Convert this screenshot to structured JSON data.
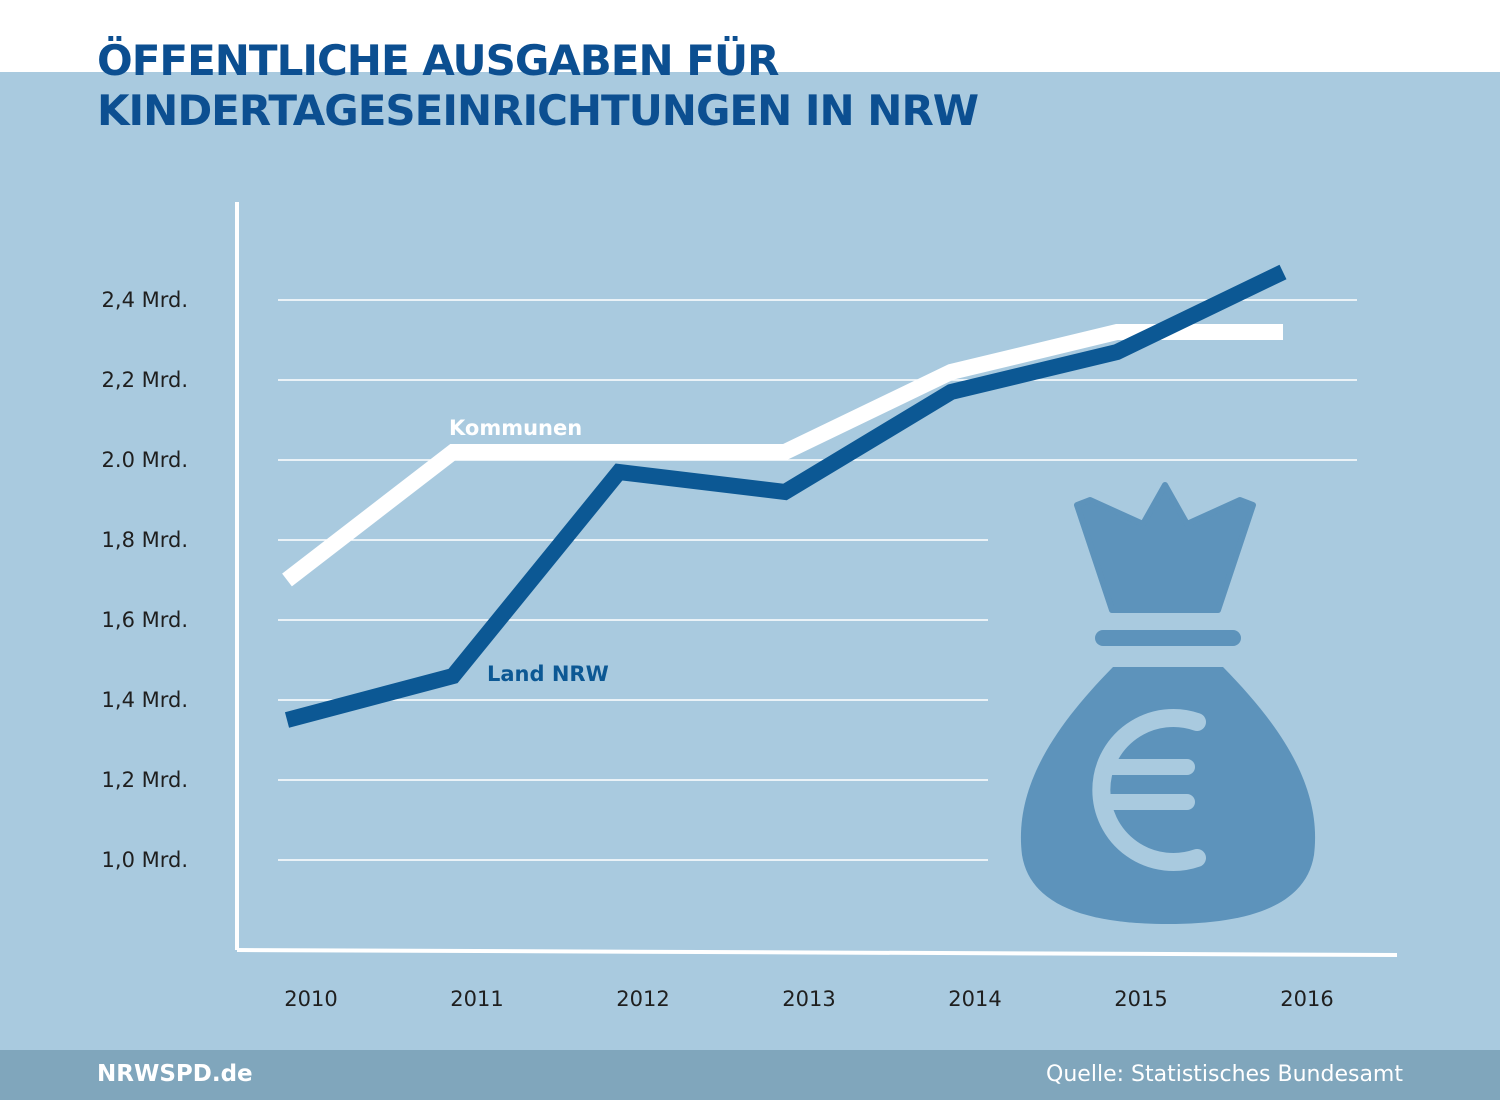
{
  "title_lines": [
    "ÖFFENTLICHE AUSGABEN FÜR",
    "KINDERTAGESEINRICHTUNGEN IN NRW"
  ],
  "footer": {
    "brand": "NRWSPD.de",
    "source": "Quelle: Statistisches Bundesamt"
  },
  "icon": "euro-money-bag-icon",
  "colors": {
    "background": "#a9cadf",
    "title": "#0c4f91",
    "land_nrw": "#0c5894",
    "kommunen": "#ffffff",
    "bag": "#5d93bb",
    "footer": "#80a6bc"
  },
  "chart_data": {
    "type": "line",
    "x": [
      "2010",
      "2011",
      "2012",
      "2013",
      "2014",
      "2015",
      "2016"
    ],
    "y_ticks": [
      1.0,
      1.2,
      1.4,
      1.6,
      1.8,
      2.0,
      2.2,
      2.4
    ],
    "y_tick_labels": [
      "1,0 Mrd.",
      "1,2 Mrd.",
      "1,4 Mrd.",
      "1,6 Mrd.",
      "1,8 Mrd.",
      "2.0 Mrd.",
      "2,2 Mrd.",
      "2,4 Mrd."
    ],
    "ylim": [
      1.0,
      2.4
    ],
    "grid": true,
    "series": [
      {
        "name": "Kommunen",
        "values": [
          1.7,
          2.02,
          2.02,
          2.02,
          2.22,
          2.32,
          2.32
        ]
      },
      {
        "name": "Land NRW",
        "values": [
          1.35,
          1.46,
          1.97,
          1.92,
          2.17,
          2.27,
          2.47
        ]
      }
    ]
  }
}
